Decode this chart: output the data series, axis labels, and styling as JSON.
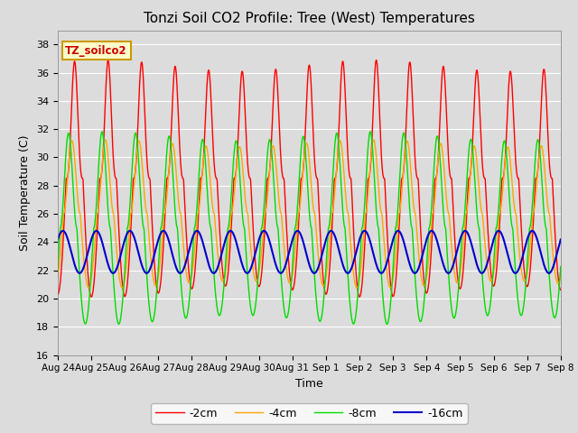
{
  "title": "Tonzi Soil CO2 Profile: Tree (West) Temperatures",
  "xlabel": "Time",
  "ylabel": "Soil Temperature (C)",
  "ylim": [
    16,
    39
  ],
  "yticks": [
    16,
    18,
    20,
    22,
    24,
    26,
    28,
    30,
    32,
    34,
    36,
    38
  ],
  "xtick_labels": [
    "Aug 24",
    "Aug 25",
    "Aug 26",
    "Aug 27",
    "Aug 28",
    "Aug 29",
    "Aug 30",
    "Aug 31",
    "Sep 1",
    "Sep 2",
    "Sep 3",
    "Sep 4",
    "Sep 5",
    "Sep 6",
    "Sep 7",
    "Sep 8"
  ],
  "series_colors": [
    "#ff0000",
    "#ffa500",
    "#00dd00",
    "#0000cc"
  ],
  "series_labels": [
    "-2cm",
    "-4cm",
    "-8cm",
    "-16cm"
  ],
  "legend_label": "TZ_soilco2",
  "legend_bg": "#ffffcc",
  "legend_border": "#cc9900",
  "plot_bg": "#dcdcdc",
  "fig_bg": "#dcdcdc",
  "n_days": 15,
  "mean_2cm": 28.5,
  "mean_4cm": 26.0,
  "mean_8cm": 25.0,
  "mean_16cm": 23.3,
  "amp_2cm": 8.0,
  "amp_4cm": 5.0,
  "amp_8cm": 6.5,
  "amp_16cm": 1.5,
  "phase_2cm": 0.0,
  "phase_4cm": 0.08,
  "phase_8cm": 0.18,
  "phase_16cm": 0.35,
  "skew_2cm": 3.0,
  "skew_4cm": 2.0,
  "skew_8cm": 2.0
}
